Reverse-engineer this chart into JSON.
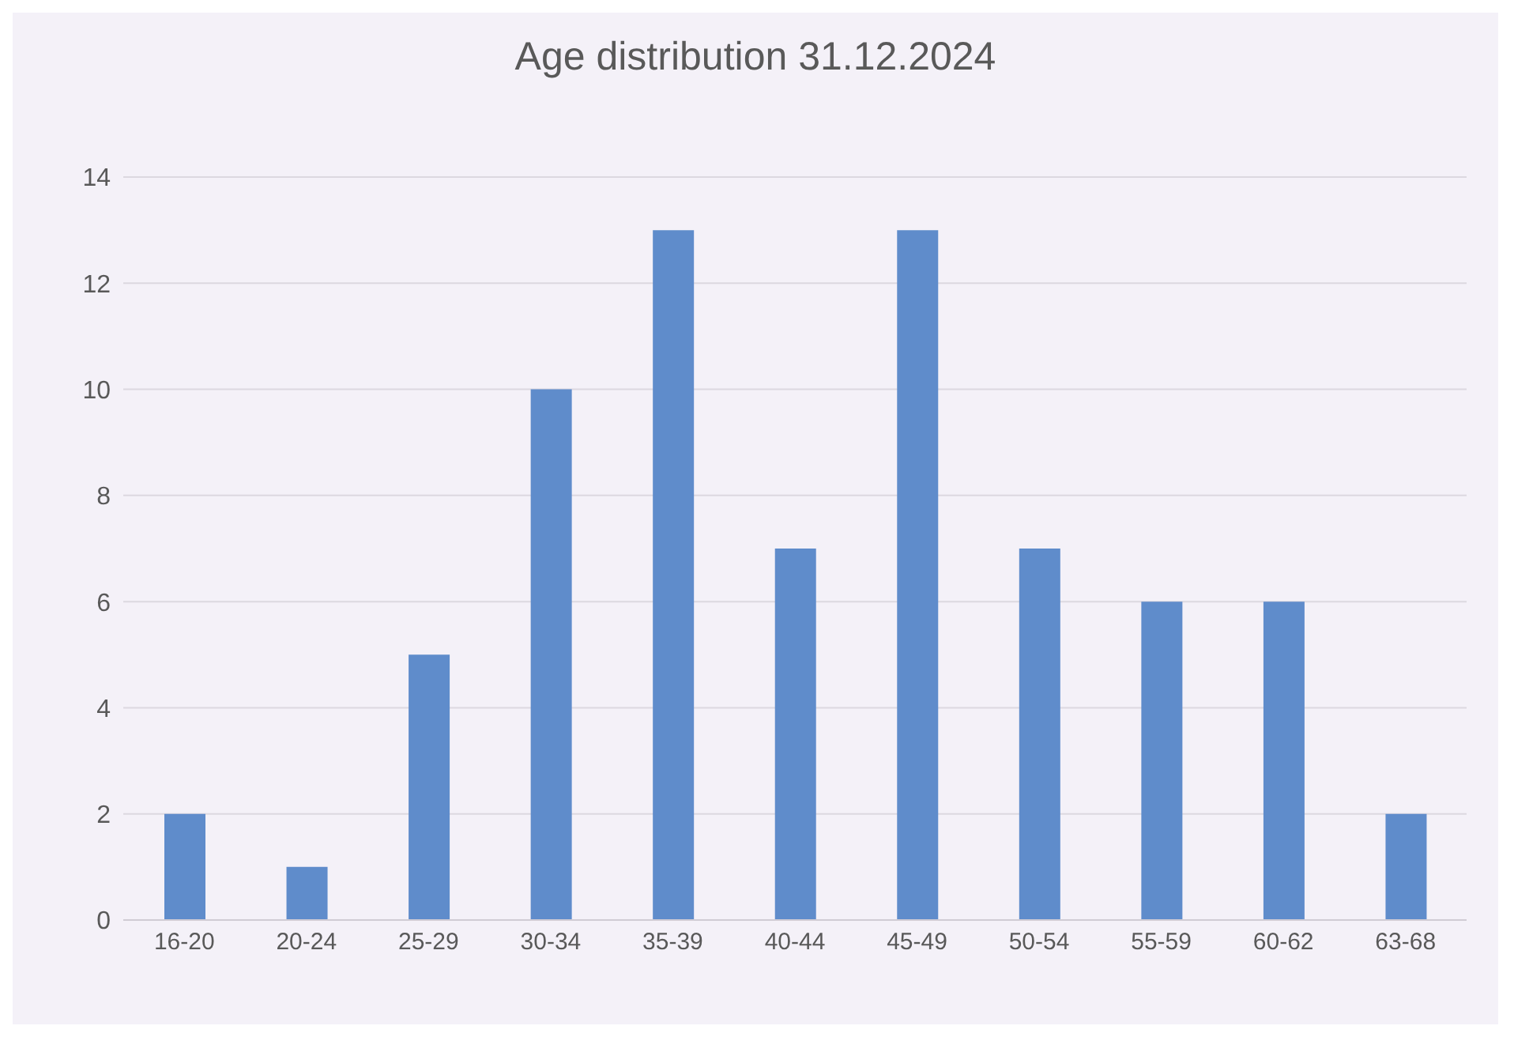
{
  "chart_data": {
    "type": "bar",
    "title": "Age distribution 31.12.2024",
    "categories": [
      "16-20",
      "20-24",
      "25-29",
      "30-34",
      "35-39",
      "40-44",
      "45-49",
      "50-54",
      "55-59",
      "60-62",
      "63-68"
    ],
    "values": [
      2,
      1,
      5,
      10,
      13,
      7,
      13,
      7,
      6,
      6,
      2
    ],
    "color": "#5f8ccb",
    "ylim": [
      0,
      14
    ],
    "yticks": [
      0,
      2,
      4,
      6,
      8,
      10,
      12,
      14
    ],
    "grid": "y"
  }
}
